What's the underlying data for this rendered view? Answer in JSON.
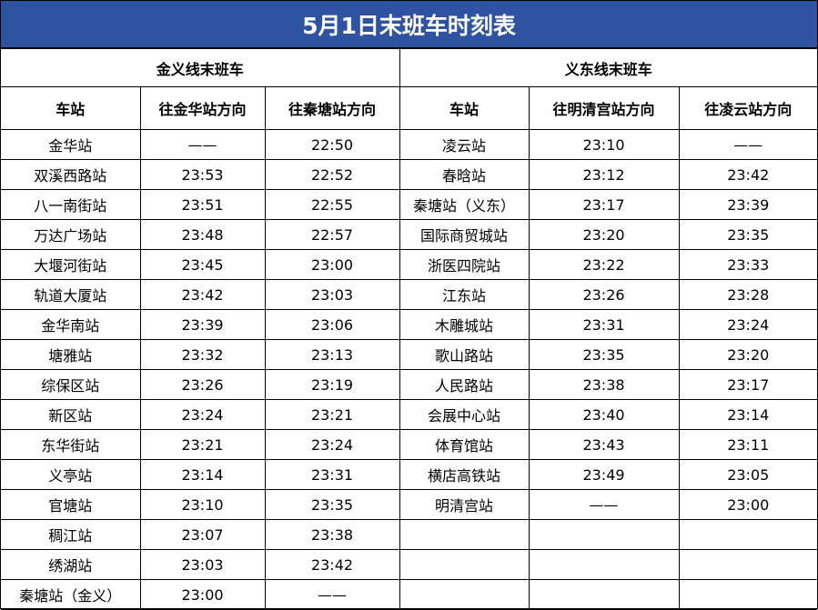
{
  "title": "5月1日末班车时刻表",
  "lines": [
    {
      "name": "金义线末班车",
      "headers": [
        "车站",
        "往金华站方向",
        "往秦塘站方向"
      ],
      "rows": [
        [
          "金华站",
          "——",
          "22:50"
        ],
        [
          "双溪西路站",
          "23:53",
          "22:52"
        ],
        [
          "八一南街站",
          "23:51",
          "22:55"
        ],
        [
          "万达广场站",
          "23:48",
          "22:57"
        ],
        [
          "大堰河街站",
          "23:45",
          "23:00"
        ],
        [
          "轨道大厦站",
          "23:42",
          "23:03"
        ],
        [
          "金华南站",
          "23:39",
          "23:06"
        ],
        [
          "塘雅站",
          "23:32",
          "23:13"
        ],
        [
          "综保区站",
          "23:26",
          "23:19"
        ],
        [
          "新区站",
          "23:24",
          "23:21"
        ],
        [
          "东华街站",
          "23:21",
          "23:24"
        ],
        [
          "义亭站",
          "23:14",
          "23:31"
        ],
        [
          "官塘站",
          "23:10",
          "23:35"
        ],
        [
          "稠江站",
          "23:07",
          "23:38"
        ],
        [
          "绣湖站",
          "23:03",
          "23:42"
        ],
        [
          "秦塘站（金义）",
          "23:00",
          "——"
        ]
      ]
    },
    {
      "name": "义东线末班车",
      "headers": [
        "车站",
        "往明清宫站方向",
        "往凌云站方向"
      ],
      "rows": [
        [
          "凌云站",
          "23:10",
          "——"
        ],
        [
          "春晗站",
          "23:12",
          "23:42"
        ],
        [
          "秦塘站（义东）",
          "23:17",
          "23:39"
        ],
        [
          "国际商贸城站",
          "23:20",
          "23:35"
        ],
        [
          "浙医四院站",
          "23:22",
          "23:33"
        ],
        [
          "江东站",
          "23:26",
          "23:28"
        ],
        [
          "木雕城站",
          "23:31",
          "23:24"
        ],
        [
          "歌山路站",
          "23:35",
          "23:20"
        ],
        [
          "人民路站",
          "23:38",
          "23:17"
        ],
        [
          "会展中心站",
          "23:40",
          "23:14"
        ],
        [
          "体育馆站",
          "23:43",
          "23:11"
        ],
        [
          "横店高铁站",
          "23:49",
          "23:05"
        ],
        [
          "明清宫站",
          "——",
          "23:00"
        ]
      ]
    }
  ]
}
